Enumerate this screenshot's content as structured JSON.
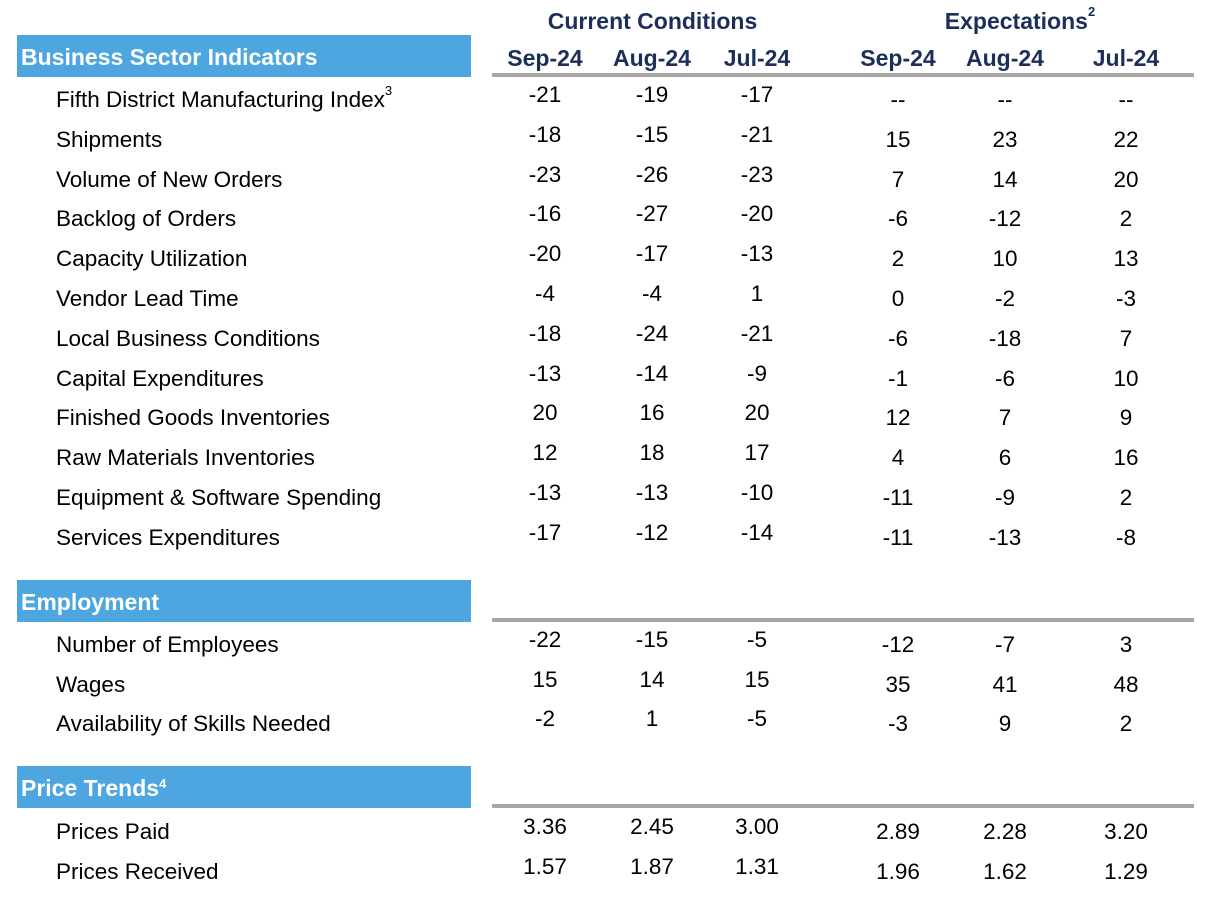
{
  "header": {
    "current_group": "Current Conditions",
    "expectations_group": "Expectations",
    "expectations_footnote": "2",
    "current_months": [
      "Sep-24",
      "Aug-24",
      "Jul-24"
    ],
    "expectations_months": [
      "Sep-24",
      "Aug-24",
      "Jul-24"
    ]
  },
  "colors": {
    "section_bar": "#4ea6e0",
    "header_text": "#1b2f5a",
    "rule": "#a6a6a6"
  },
  "sections": [
    {
      "title": "Business Sector Indicators",
      "footnote": "",
      "rows": [
        {
          "label": "Fifth District Manufacturing Index",
          "footnote": "3",
          "current": [
            "-21",
            "-19",
            "-17"
          ],
          "expectations": [
            "--",
            "--",
            "--"
          ]
        },
        {
          "label": "Shipments",
          "current": [
            "-18",
            "-15",
            "-21"
          ],
          "expectations": [
            "15",
            "23",
            "22"
          ]
        },
        {
          "label": "Volume of New Orders",
          "current": [
            "-23",
            "-26",
            "-23"
          ],
          "expectations": [
            "7",
            "14",
            "20"
          ]
        },
        {
          "label": "Backlog of Orders",
          "current": [
            "-16",
            "-27",
            "-20"
          ],
          "expectations": [
            "-6",
            "-12",
            "2"
          ]
        },
        {
          "label": "Capacity Utilization",
          "current": [
            "-20",
            "-17",
            "-13"
          ],
          "expectations": [
            "2",
            "10",
            "13"
          ]
        },
        {
          "label": "Vendor Lead Time",
          "current": [
            "-4",
            "-4",
            "1"
          ],
          "expectations": [
            "0",
            "-2",
            "-3"
          ]
        },
        {
          "label": "Local Business Conditions",
          "current": [
            "-18",
            "-24",
            "-21"
          ],
          "expectations": [
            "-6",
            "-18",
            "7"
          ]
        },
        {
          "label": "Capital Expenditures",
          "current": [
            "-13",
            "-14",
            "-9"
          ],
          "expectations": [
            "-1",
            "-6",
            "10"
          ]
        },
        {
          "label": "Finished Goods Inventories",
          "current": [
            "20",
            "16",
            "20"
          ],
          "expectations": [
            "12",
            "7",
            "9"
          ]
        },
        {
          "label": "Raw Materials Inventories",
          "current": [
            "12",
            "18",
            "17"
          ],
          "expectations": [
            "4",
            "6",
            "16"
          ]
        },
        {
          "label": "Equipment & Software Spending",
          "current": [
            "-13",
            "-13",
            "-10"
          ],
          "expectations": [
            "-11",
            "-9",
            "2"
          ]
        },
        {
          "label": "Services Expenditures",
          "current": [
            "-17",
            "-12",
            "-14"
          ],
          "expectations": [
            "-11",
            "-13",
            "-8"
          ]
        }
      ]
    },
    {
      "title": "Employment",
      "footnote": "",
      "rows": [
        {
          "label": "Number of Employees",
          "current": [
            "-22",
            "-15",
            "-5"
          ],
          "expectations": [
            "-12",
            "-7",
            "3"
          ]
        },
        {
          "label": "Wages",
          "current": [
            "15",
            "14",
            "15"
          ],
          "expectations": [
            "35",
            "41",
            "48"
          ]
        },
        {
          "label": "Availability of Skills Needed",
          "current": [
            "-2",
            "1",
            "-5"
          ],
          "expectations": [
            "-3",
            "9",
            "2"
          ]
        }
      ]
    },
    {
      "title": "Price Trends",
      "footnote": "4",
      "rows": [
        {
          "label": "Prices Paid",
          "current": [
            "3.36",
            "2.45",
            "3.00"
          ],
          "expectations": [
            "2.89",
            "2.28",
            "3.20"
          ]
        },
        {
          "label": "Prices Received",
          "current": [
            "1.57",
            "1.87",
            "1.31"
          ],
          "expectations": [
            "1.96",
            "1.62",
            "1.29"
          ]
        }
      ]
    }
  ]
}
